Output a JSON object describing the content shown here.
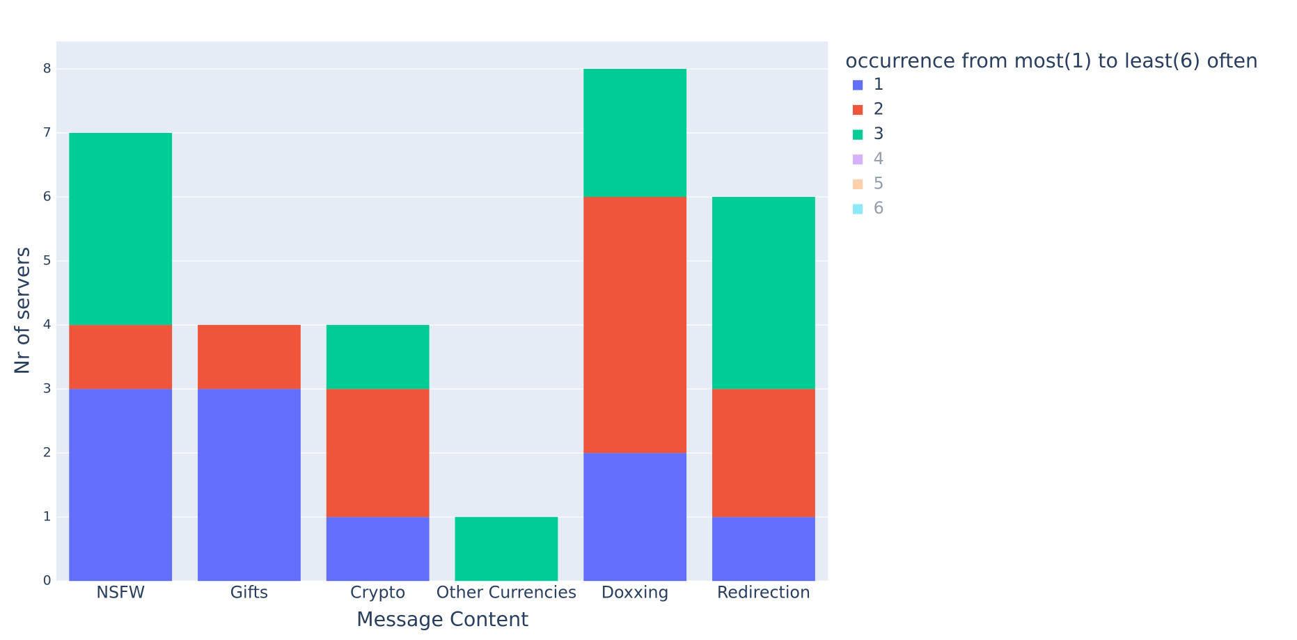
{
  "chart_data": {
    "type": "bar",
    "stacked": true,
    "x_label": "Message Content",
    "y_label": "Nr of servers",
    "legend_title": "occurrence from most(1) to least(6) often",
    "categories": [
      "NSFW",
      "Gifts",
      "Crypto",
      "Other Currencies",
      "Doxxing",
      "Redirection"
    ],
    "series": [
      {
        "name": "1",
        "color": "#636efa",
        "values": [
          3,
          3,
          1,
          0,
          2,
          1
        ]
      },
      {
        "name": "2",
        "color": "#EF553B",
        "values": [
          1,
          1,
          2,
          0,
          4,
          2
        ]
      },
      {
        "name": "3",
        "color": "#00cc96",
        "values": [
          3,
          0,
          1,
          1,
          2,
          3
        ]
      },
      {
        "name": "4",
        "color": "#ab63fa",
        "visible": false,
        "values": [
          null,
          null,
          null,
          null,
          null,
          null
        ]
      },
      {
        "name": "5",
        "color": "#FFA15A",
        "visible": false,
        "values": [
          null,
          null,
          null,
          null,
          null,
          null
        ]
      },
      {
        "name": "6",
        "color": "#19d3f3",
        "visible": false,
        "values": [
          null,
          null,
          null,
          null,
          null,
          null
        ]
      }
    ],
    "ylim": [
      0,
      8.43
    ],
    "yticks": [
      0,
      1,
      2,
      3,
      4,
      5,
      6,
      7,
      8
    ],
    "grid": true,
    "legend": "right"
  }
}
